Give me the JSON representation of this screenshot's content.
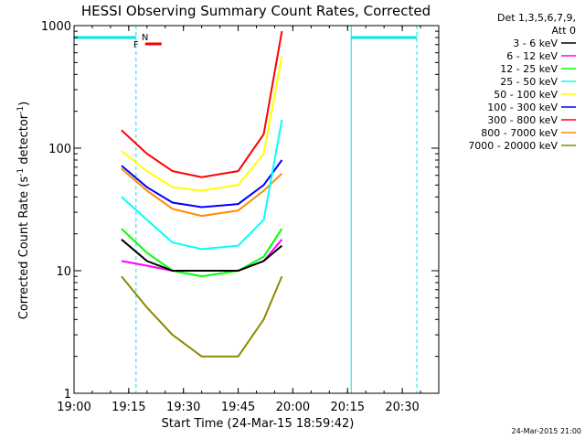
{
  "chart_data": {
    "type": "line",
    "title": "HESSI Observing Summary Count Rates, Corrected",
    "xlabel": "Start Time (24-Mar-15 18:59:42)",
    "ylabel": "Corrected Count Rate (s-1 detector-1)",
    "y_scale": "log",
    "ylim": [
      1,
      1000
    ],
    "xlim": [
      "19:00",
      "20:40"
    ],
    "x_ticks": [
      "19:00",
      "19:15",
      "19:30",
      "19:45",
      "20:00",
      "20:15",
      "20:30"
    ],
    "y_ticks": [
      "1",
      "10",
      "100",
      "1000"
    ],
    "legend_header": [
      "Det 1,3,5,6,7,9,",
      "Att 0"
    ],
    "legend_position": "right",
    "footer_date": "24-Mar-2015 21:00",
    "flags": [
      {
        "label": "N",
        "color": "#00e5ee"
      },
      {
        "label": "F",
        "color": "#ff0000"
      }
    ],
    "series": [
      {
        "name": "3 - 6 keV",
        "color": "#000000",
        "x": [
          "19:13",
          "19:20",
          "19:27",
          "19:35",
          "19:45",
          "19:52",
          "19:57"
        ],
        "values": [
          18,
          12,
          10,
          10,
          10,
          12,
          16
        ]
      },
      {
        "name": "6 - 12 keV",
        "color": "#ff00ff",
        "x": [
          "19:13",
          "19:20",
          "19:27",
          "19:35",
          "19:45",
          "19:52",
          "19:57"
        ],
        "values": [
          12,
          11,
          10,
          10,
          10,
          12,
          18
        ]
      },
      {
        "name": "12 - 25 keV",
        "color": "#00ff00",
        "x": [
          "19:13",
          "19:20",
          "19:27",
          "19:35",
          "19:45",
          "19:52",
          "19:57"
        ],
        "values": [
          22,
          14,
          10,
          9,
          10,
          13,
          22
        ]
      },
      {
        "name": "25 - 50 keV",
        "color": "#00ffff",
        "x": [
          "19:13",
          "19:20",
          "19:27",
          "19:35",
          "19:45",
          "19:52",
          "19:57"
        ],
        "values": [
          40,
          26,
          17,
          15,
          16,
          26,
          170
        ]
      },
      {
        "name": "50 - 100 keV",
        "color": "#ffff00",
        "x": [
          "19:13",
          "19:20",
          "19:27",
          "19:35",
          "19:45",
          "19:52",
          "19:57"
        ],
        "values": [
          95,
          65,
          48,
          45,
          50,
          90,
          560
        ]
      },
      {
        "name": "100 - 300 keV",
        "color": "#0000ff",
        "x": [
          "19:13",
          "19:20",
          "19:27",
          "19:35",
          "19:45",
          "19:52",
          "19:57"
        ],
        "values": [
          72,
          48,
          36,
          33,
          35,
          50,
          80
        ]
      },
      {
        "name": "300 - 800 keV",
        "color": "#ff0000",
        "x": [
          "19:13",
          "19:20",
          "19:27",
          "19:35",
          "19:45",
          "19:52",
          "19:57"
        ],
        "values": [
          140,
          90,
          65,
          58,
          65,
          130,
          900
        ]
      },
      {
        "name": "800 - 7000 keV",
        "color": "#ff8c00",
        "x": [
          "19:13",
          "19:20",
          "19:27",
          "19:35",
          "19:45",
          "19:52",
          "19:57"
        ],
        "values": [
          68,
          45,
          32,
          28,
          31,
          45,
          62
        ]
      },
      {
        "name": "7000 - 20000 keV",
        "color": "#8b8b00",
        "x": [
          "19:13",
          "19:20",
          "19:27",
          "19:35",
          "19:45",
          "19:52",
          "19:57"
        ],
        "values": [
          9,
          5,
          3,
          2,
          2,
          4,
          9
        ]
      }
    ]
  }
}
